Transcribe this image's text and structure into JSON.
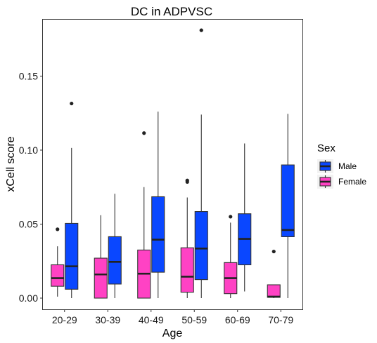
{
  "chart_data": {
    "type": "boxplot",
    "title": "DC in ADPVSC",
    "xlabel": "Age",
    "ylabel": "xCell score",
    "ylim": [
      -0.007,
      0.184
    ],
    "yticks": [
      {
        "value": 0.0,
        "label": "0.00"
      },
      {
        "value": 0.05,
        "label": "0.05"
      },
      {
        "value": 0.1,
        "label": "0.10"
      },
      {
        "value": 0.15,
        "label": "0.15"
      }
    ],
    "categories": [
      "20-29",
      "30-39",
      "40-49",
      "50-59",
      "60-69",
      "70-79"
    ],
    "legend": {
      "title": "Sex",
      "position": "right",
      "entries": [
        {
          "label": "Male",
          "color": "#0A47FF"
        },
        {
          "label": "Female",
          "color": "#FF42C4"
        }
      ]
    },
    "grid": false,
    "series": [
      {
        "name": "Female",
        "color": "#FF42C4",
        "boxes": [
          {
            "category": "20-29",
            "min": 0.001,
            "q1": 0.008,
            "median": 0.0135,
            "q3": 0.0225,
            "max": 0.035,
            "outliers": [
              0.0465
            ]
          },
          {
            "category": "30-39",
            "min": 0.0,
            "q1": 0.0,
            "median": 0.016,
            "q3": 0.027,
            "max": 0.056,
            "outliers": []
          },
          {
            "category": "40-49",
            "min": 0.0,
            "q1": 0.0,
            "median": 0.0165,
            "q3": 0.0325,
            "max": 0.075,
            "outliers": [
              0.1115
            ]
          },
          {
            "category": "50-59",
            "min": 0.0,
            "q1": 0.004,
            "median": 0.0145,
            "q3": 0.034,
            "max": 0.068,
            "outliers": [
              0.0785,
              0.0795
            ]
          },
          {
            "category": "60-69",
            "min": 0.0,
            "q1": 0.003,
            "median": 0.0135,
            "q3": 0.024,
            "max": 0.051,
            "outliers": [
              0.055
            ]
          },
          {
            "category": "70-79",
            "min": 0.0,
            "q1": 0.0005,
            "median": 0.001,
            "q3": 0.009,
            "max": 0.009,
            "outliers": [
              0.0315
            ]
          }
        ]
      },
      {
        "name": "Male",
        "color": "#0A47FF",
        "boxes": [
          {
            "category": "20-29",
            "min": 0.0,
            "q1": 0.006,
            "median": 0.0215,
            "q3": 0.0505,
            "max": 0.1015,
            "outliers": [
              0.1315
            ]
          },
          {
            "category": "30-39",
            "min": 0.0,
            "q1": 0.0095,
            "median": 0.0245,
            "q3": 0.0415,
            "max": 0.0705,
            "outliers": []
          },
          {
            "category": "40-49",
            "min": 0.0,
            "q1": 0.0175,
            "median": 0.0395,
            "q3": 0.0685,
            "max": 0.126,
            "outliers": []
          },
          {
            "category": "50-59",
            "min": 0.0,
            "q1": 0.0125,
            "median": 0.0335,
            "q3": 0.0585,
            "max": 0.124,
            "outliers": [
              0.181
            ]
          },
          {
            "category": "60-69",
            "min": 0.0045,
            "q1": 0.0225,
            "median": 0.04,
            "q3": 0.057,
            "max": 0.1045,
            "outliers": []
          },
          {
            "category": "70-79",
            "min": 0.0,
            "q1": 0.0415,
            "median": 0.046,
            "q3": 0.09,
            "max": 0.1245,
            "outliers": []
          }
        ]
      }
    ]
  }
}
